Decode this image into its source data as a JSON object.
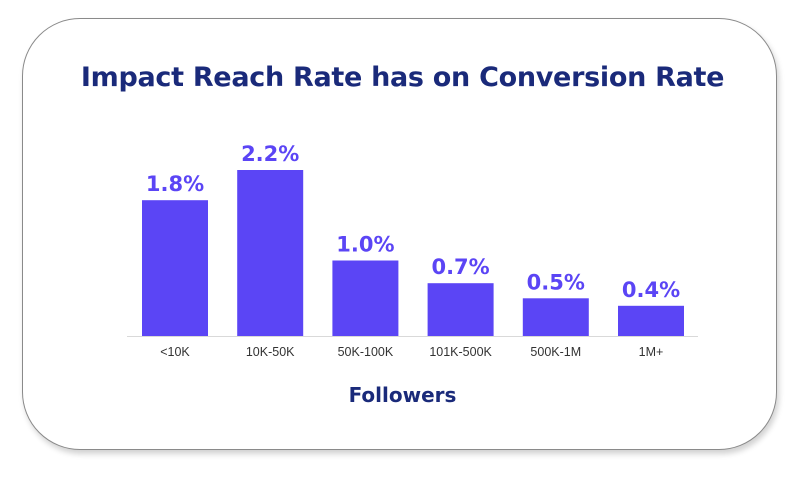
{
  "chart_data": {
    "type": "bar",
    "title": "Impact Reach Rate has on Conversion Rate",
    "xlabel": "Followers",
    "ylabel": "",
    "categories": [
      "<10K",
      "10K-50K",
      "50K-100K",
      "101K-500K",
      "500K-1M",
      "1M+"
    ],
    "values": [
      1.8,
      2.2,
      1.0,
      0.7,
      0.5,
      0.4
    ],
    "data_labels": [
      "1.8%",
      "2.2%",
      "1.0%",
      "0.7%",
      "0.5%",
      "0.4%"
    ],
    "ylim": [
      0,
      2.2
    ],
    "bar_color": "#5b45f5",
    "label_color": "#5b45f5",
    "title_color": "#1a2a7a",
    "grid": false,
    "legend": "none"
  }
}
